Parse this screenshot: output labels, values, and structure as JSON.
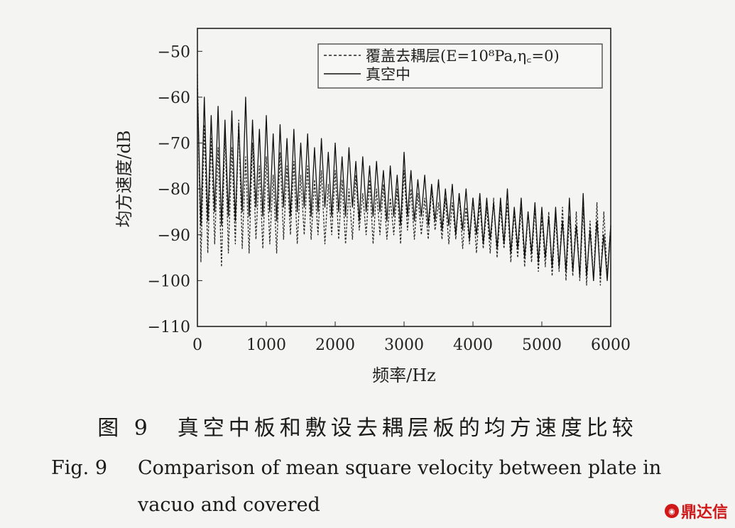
{
  "chart_data": {
    "type": "line",
    "xlabel": "频率/Hz",
    "ylabel": "均方速度/dB",
    "xlim": [
      0,
      6000
    ],
    "ylim": [
      -110,
      -45
    ],
    "xticks": [
      0,
      1000,
      2000,
      3000,
      4000,
      5000,
      6000
    ],
    "yticks": [
      -50,
      -60,
      -70,
      -80,
      -90,
      -100,
      -110
    ],
    "grid": false,
    "legend_position": "top-right",
    "series": [
      {
        "name": "覆盖去耦层(E=10⁸Pa,η꜀=0)",
        "style": "dashed",
        "color": "#2b2b2b",
        "x": [
          0,
          50,
          100,
          150,
          200,
          250,
          300,
          350,
          400,
          450,
          500,
          550,
          600,
          650,
          700,
          750,
          800,
          850,
          900,
          950,
          1000,
          1050,
          1100,
          1150,
          1200,
          1250,
          1300,
          1350,
          1400,
          1450,
          1500,
          1550,
          1600,
          1650,
          1700,
          1750,
          1800,
          1850,
          1900,
          1950,
          2000,
          2050,
          2100,
          2150,
          2200,
          2250,
          2300,
          2350,
          2400,
          2450,
          2500,
          2550,
          2600,
          2650,
          2700,
          2750,
          2800,
          2850,
          2900,
          2950,
          3000,
          3050,
          3100,
          3150,
          3200,
          3250,
          3300,
          3350,
          3400,
          3450,
          3500,
          3550,
          3600,
          3650,
          3700,
          3750,
          3800,
          3850,
          3900,
          3950,
          4000,
          4050,
          4100,
          4150,
          4200,
          4250,
          4300,
          4350,
          4400,
          4450,
          4500,
          4550,
          4600,
          4650,
          4700,
          4750,
          4800,
          4850,
          4900,
          4950,
          5000,
          5050,
          5100,
          5150,
          5200,
          5250,
          5300,
          5350,
          5400,
          5450,
          5500,
          5550,
          5600,
          5650,
          5700,
          5750,
          5800,
          5850,
          5900,
          5950,
          6000
        ],
        "y": [
          -55,
          -96,
          -66,
          -94,
          -69,
          -92,
          -71,
          -97,
          -67,
          -94,
          -71,
          -92,
          -65,
          -93,
          -73,
          -94,
          -70,
          -91,
          -75,
          -93,
          -73,
          -92,
          -77,
          -94,
          -72,
          -91,
          -75,
          -90,
          -74,
          -92,
          -77,
          -90,
          -75,
          -91,
          -78,
          -90,
          -76,
          -92,
          -79,
          -90,
          -76,
          -91,
          -78,
          -92,
          -80,
          -91,
          -77,
          -89,
          -81,
          -90,
          -78,
          -92,
          -80,
          -90,
          -79,
          -91,
          -82,
          -90,
          -80,
          -92,
          -76,
          -89,
          -80,
          -91,
          -81,
          -90,
          -82,
          -91,
          -80,
          -89,
          -83,
          -91,
          -82,
          -92,
          -83,
          -91,
          -81,
          -93,
          -84,
          -92,
          -82,
          -94,
          -83,
          -93,
          -84,
          -94,
          -82,
          -95,
          -84,
          -93,
          -83,
          -96,
          -85,
          -95,
          -84,
          -97,
          -85,
          -96,
          -84,
          -98,
          -86,
          -97,
          -85,
          -99,
          -86,
          -98,
          -84,
          -100,
          -86,
          -99,
          -85,
          -100,
          -84,
          -101,
          -87,
          -100,
          -83,
          -101,
          -85,
          -99,
          -88
        ]
      },
      {
        "name": "真空中",
        "style": "solid",
        "color": "#111111",
        "x": [
          0,
          50,
          100,
          150,
          200,
          250,
          300,
          350,
          400,
          450,
          500,
          550,
          600,
          650,
          700,
          750,
          800,
          850,
          900,
          950,
          1000,
          1050,
          1100,
          1150,
          1200,
          1250,
          1300,
          1350,
          1400,
          1450,
          1500,
          1550,
          1600,
          1650,
          1700,
          1750,
          1800,
          1850,
          1900,
          1950,
          2000,
          2050,
          2100,
          2150,
          2200,
          2250,
          2300,
          2350,
          2400,
          2450,
          2500,
          2550,
          2600,
          2650,
          2700,
          2750,
          2800,
          2850,
          2900,
          2950,
          3000,
          3050,
          3100,
          3150,
          3200,
          3250,
          3300,
          3350,
          3400,
          3450,
          3500,
          3550,
          3600,
          3650,
          3700,
          3750,
          3800,
          3850,
          3900,
          3950,
          4000,
          4050,
          4100,
          4150,
          4200,
          4250,
          4300,
          4350,
          4400,
          4450,
          4500,
          4550,
          4600,
          4650,
          4700,
          4750,
          4800,
          4850,
          4900,
          4950,
          5000,
          5050,
          5100,
          5150,
          5200,
          5250,
          5300,
          5350,
          5400,
          5450,
          5500,
          5550,
          5600,
          5650,
          5700,
          5750,
          5800,
          5850,
          5900,
          5950,
          6000
        ],
        "y": [
          -58,
          -88,
          -60,
          -87,
          -64,
          -85,
          -62,
          -88,
          -65,
          -86,
          -63,
          -87,
          -66,
          -85,
          -60,
          -86,
          -65,
          -84,
          -67,
          -86,
          -64,
          -85,
          -68,
          -87,
          -66,
          -84,
          -69,
          -86,
          -67,
          -85,
          -70,
          -84,
          -68,
          -86,
          -71,
          -85,
          -69,
          -84,
          -72,
          -86,
          -70,
          -85,
          -73,
          -86,
          -71,
          -84,
          -74,
          -87,
          -73,
          -85,
          -75,
          -86,
          -74,
          -85,
          -76,
          -87,
          -75,
          -86,
          -77,
          -88,
          -72,
          -86,
          -76,
          -87,
          -78,
          -86,
          -77,
          -88,
          -79,
          -87,
          -78,
          -89,
          -80,
          -88,
          -79,
          -90,
          -81,
          -89,
          -80,
          -91,
          -82,
          -90,
          -81,
          -92,
          -82,
          -91,
          -83,
          -93,
          -82,
          -92,
          -80,
          -94,
          -84,
          -93,
          -82,
          -95,
          -85,
          -94,
          -83,
          -96,
          -84,
          -95,
          -86,
          -97,
          -84,
          -97,
          -87,
          -98,
          -82,
          -98,
          -88,
          -99,
          -81,
          -99,
          -89,
          -100,
          -87,
          -99,
          -90,
          -100,
          -88
        ]
      }
    ]
  },
  "caption": {
    "cn": "图 9　真空中板和敷设去耦层板的均方速度比较",
    "en_label": "Fig. 9",
    "en_line1": "Comparison of mean square velocity between plate in",
    "en_line2": "vacuo and covered"
  },
  "watermark": {
    "text": "鼎达信"
  }
}
